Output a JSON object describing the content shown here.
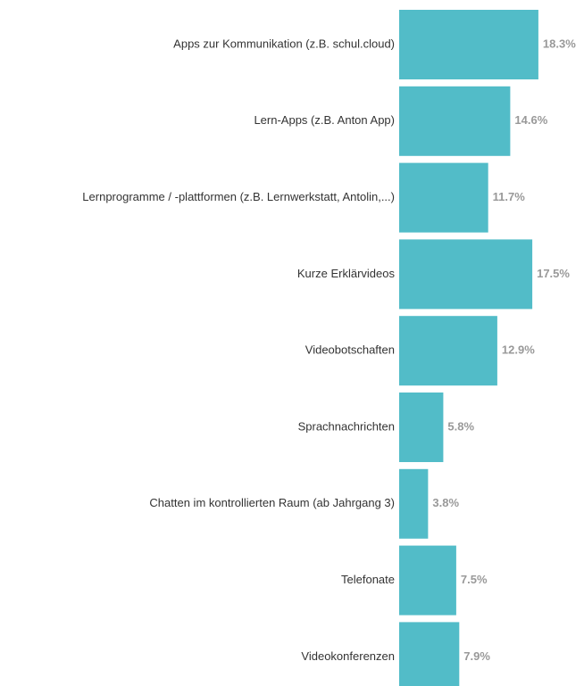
{
  "chart_data": {
    "type": "bar",
    "orientation": "horizontal",
    "categories": [
      "Apps zur Kommunikation (z.B. schul.cloud)",
      "Lern-Apps (z.B. Anton App)",
      "Lernprogramme / -plattformen (z.B. Lernwerkstatt, Antolin,...)",
      "Kurze Erklärvideos",
      "Videobotschaften",
      "Sprachnachrichten",
      "Chatten im kontrollierten Raum (ab Jahrgang 3)",
      "Telefonate",
      "Videokonferenzen"
    ],
    "values": [
      18.3,
      14.6,
      11.7,
      17.5,
      12.9,
      5.8,
      3.8,
      7.5,
      7.9
    ],
    "value_labels": [
      "18.3%",
      "14.6%",
      "11.7%",
      "17.5%",
      "12.9%",
      "5.8%",
      "3.8%",
      "7.5%",
      "7.9%"
    ],
    "color": "#52bcc8"
  }
}
